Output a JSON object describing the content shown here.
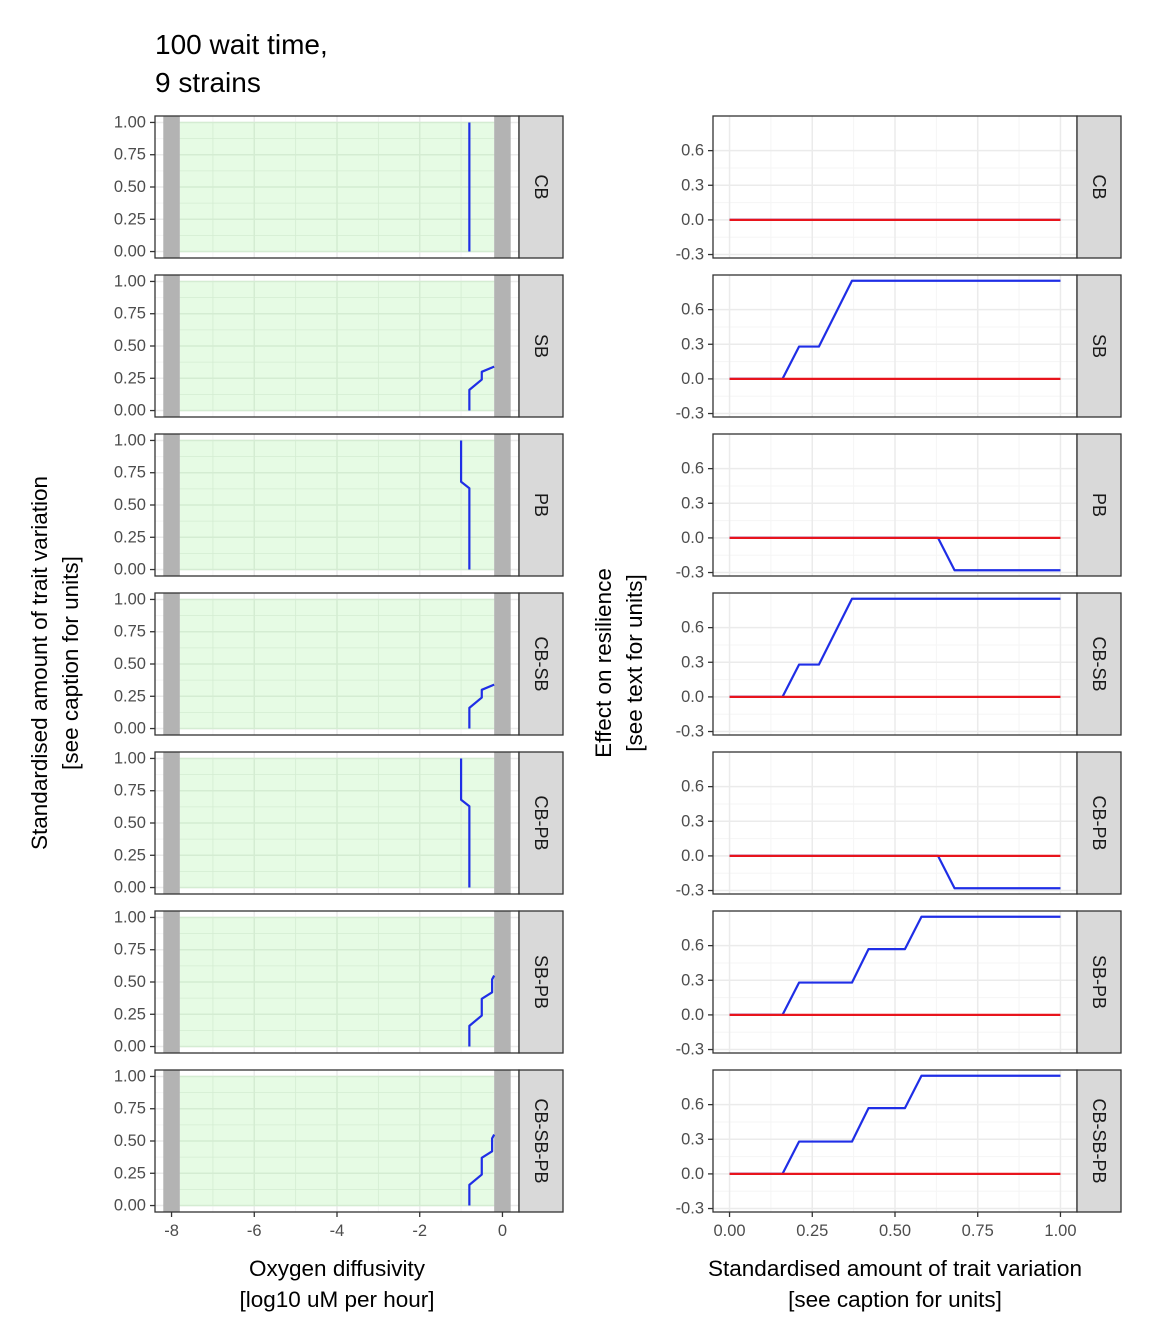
{
  "title_lines": [
    "100 wait time,",
    "9 strains"
  ],
  "colors": {
    "background": "#ffffff",
    "panel_border": "#333333",
    "strip_fill": "#d9d9d9",
    "grid_major": "#ebebeb",
    "grid_minor": "#f5f5f5",
    "feasible_fill": "#e6fbe4",
    "feasible_grid": "#d4ecd2",
    "limit_band": "#b3b3b3",
    "blue_line": "#1f2ee6",
    "red_line": "#e8141c"
  },
  "chart_data": [
    {
      "type": "line",
      "facet_column": "left",
      "xlabel_lines": [
        "Oxygen diffusivity",
        "[log10 uM per hour]"
      ],
      "ylabel_lines": [
        "Standardised amount of trait variation",
        "[see caption for units]"
      ],
      "xlim": [
        -8.4,
        0.4
      ],
      "ylim": [
        -0.05,
        1.05
      ],
      "x_ticks": [
        -8,
        -6,
        -4,
        -2,
        0
      ],
      "x_tick_labels": [
        "-8",
        "-6",
        "-4",
        "-2",
        "0"
      ],
      "y_ticks": [
        0,
        0.25,
        0.5,
        0.75,
        1
      ],
      "y_tick_labels": [
        "0.00",
        "0.25",
        "0.50",
        "0.75",
        "1.00"
      ],
      "shaded_region_x": [
        -7.8,
        -0.2
      ],
      "limit_bands_x": [
        [
          -8.2,
          -7.8
        ],
        [
          -0.2,
          0.2
        ]
      ],
      "panels": [
        {
          "label": "CB",
          "line": {
            "x": [
              -0.8,
              -0.8
            ],
            "y": [
              0,
              1
            ]
          }
        },
        {
          "label": "SB",
          "line": {
            "x": [
              -0.8,
              -0.8,
              -0.5,
              -0.5,
              -0.2
            ],
            "y": [
              0,
              0.16,
              0.24,
              0.3,
              0.34
            ]
          }
        },
        {
          "label": "PB",
          "line": {
            "x": [
              -0.8,
              -0.8,
              -1.0,
              -1.0
            ],
            "y": [
              0,
              0.63,
              0.68,
              1
            ]
          }
        },
        {
          "label": "CB-SB",
          "line": {
            "x": [
              -0.8,
              -0.8,
              -0.5,
              -0.5,
              -0.2
            ],
            "y": [
              0,
              0.16,
              0.24,
              0.3,
              0.34
            ]
          }
        },
        {
          "label": "CB-PB",
          "line": {
            "x": [
              -0.8,
              -0.8,
              -1.0,
              -1.0
            ],
            "y": [
              0,
              0.63,
              0.68,
              1
            ]
          }
        },
        {
          "label": "SB-PB",
          "line": {
            "x": [
              -0.8,
              -0.8,
              -0.5,
              -0.5,
              -0.25,
              -0.25,
              -0.2
            ],
            "y": [
              0,
              0.16,
              0.24,
              0.37,
              0.42,
              0.52,
              0.55
            ]
          }
        },
        {
          "label": "CB-SB-PB",
          "line": {
            "x": [
              -0.8,
              -0.8,
              -0.5,
              -0.5,
              -0.25,
              -0.25,
              -0.2
            ],
            "y": [
              0,
              0.16,
              0.24,
              0.37,
              0.42,
              0.52,
              0.55
            ]
          }
        }
      ]
    },
    {
      "type": "line",
      "facet_column": "right",
      "xlabel_lines": [
        "Standardised amount of trait variation",
        "[see caption for units]"
      ],
      "ylabel_lines": [
        "Effect on resilience",
        "[see text for units]"
      ],
      "xlim": [
        -0.05,
        1.05
      ],
      "ylim": [
        -0.33,
        0.9
      ],
      "x_ticks": [
        0,
        0.25,
        0.5,
        0.75,
        1
      ],
      "x_tick_labels": [
        "0.00",
        "0.25",
        "0.50",
        "0.75",
        "1.00"
      ],
      "y_ticks": [
        -0.3,
        0,
        0.3,
        0.6
      ],
      "y_tick_labels": [
        "-0.3",
        "0.0",
        "0.3",
        "0.6"
      ],
      "series": [
        {
          "color_key": "red_line"
        },
        {
          "color_key": "blue_line"
        }
      ],
      "panels": [
        {
          "label": "CB",
          "red": {
            "x": [
              0,
              1
            ],
            "y": [
              0,
              0
            ]
          },
          "blue": {
            "x": [
              0,
              1
            ],
            "y": [
              0,
              0
            ]
          }
        },
        {
          "label": "SB",
          "red": {
            "x": [
              0,
              1
            ],
            "y": [
              0,
              0
            ]
          },
          "blue": {
            "x": [
              0,
              0.16,
              0.21,
              0.27,
              0.37,
              1
            ],
            "y": [
              0,
              0,
              0.28,
              0.28,
              0.85,
              0.85
            ]
          }
        },
        {
          "label": "PB",
          "red": {
            "x": [
              0,
              1
            ],
            "y": [
              0,
              0
            ]
          },
          "blue": {
            "x": [
              0,
              0.63,
              0.68,
              1
            ],
            "y": [
              0,
              0,
              -0.28,
              -0.28
            ]
          }
        },
        {
          "label": "CB-SB",
          "red": {
            "x": [
              0,
              1
            ],
            "y": [
              0,
              0
            ]
          },
          "blue": {
            "x": [
              0,
              0.16,
              0.21,
              0.27,
              0.37,
              1
            ],
            "y": [
              0,
              0,
              0.28,
              0.28,
              0.85,
              0.85
            ]
          }
        },
        {
          "label": "CB-PB",
          "red": {
            "x": [
              0,
              1
            ],
            "y": [
              0,
              0
            ]
          },
          "blue": {
            "x": [
              0,
              0.63,
              0.68,
              1
            ],
            "y": [
              0,
              0,
              -0.28,
              -0.28
            ]
          }
        },
        {
          "label": "SB-PB",
          "red": {
            "x": [
              0,
              1
            ],
            "y": [
              0,
              0
            ]
          },
          "blue": {
            "x": [
              0,
              0.16,
              0.21,
              0.37,
              0.42,
              0.53,
              0.58,
              1
            ],
            "y": [
              0,
              0,
              0.28,
              0.28,
              0.57,
              0.57,
              0.85,
              0.85
            ]
          }
        },
        {
          "label": "CB-SB-PB",
          "red": {
            "x": [
              0,
              1
            ],
            "y": [
              0,
              0
            ]
          },
          "blue": {
            "x": [
              0,
              0.16,
              0.21,
              0.37,
              0.42,
              0.53,
              0.58,
              1
            ],
            "y": [
              0,
              0,
              0.28,
              0.28,
              0.57,
              0.57,
              0.85,
              0.85
            ]
          }
        }
      ]
    }
  ]
}
